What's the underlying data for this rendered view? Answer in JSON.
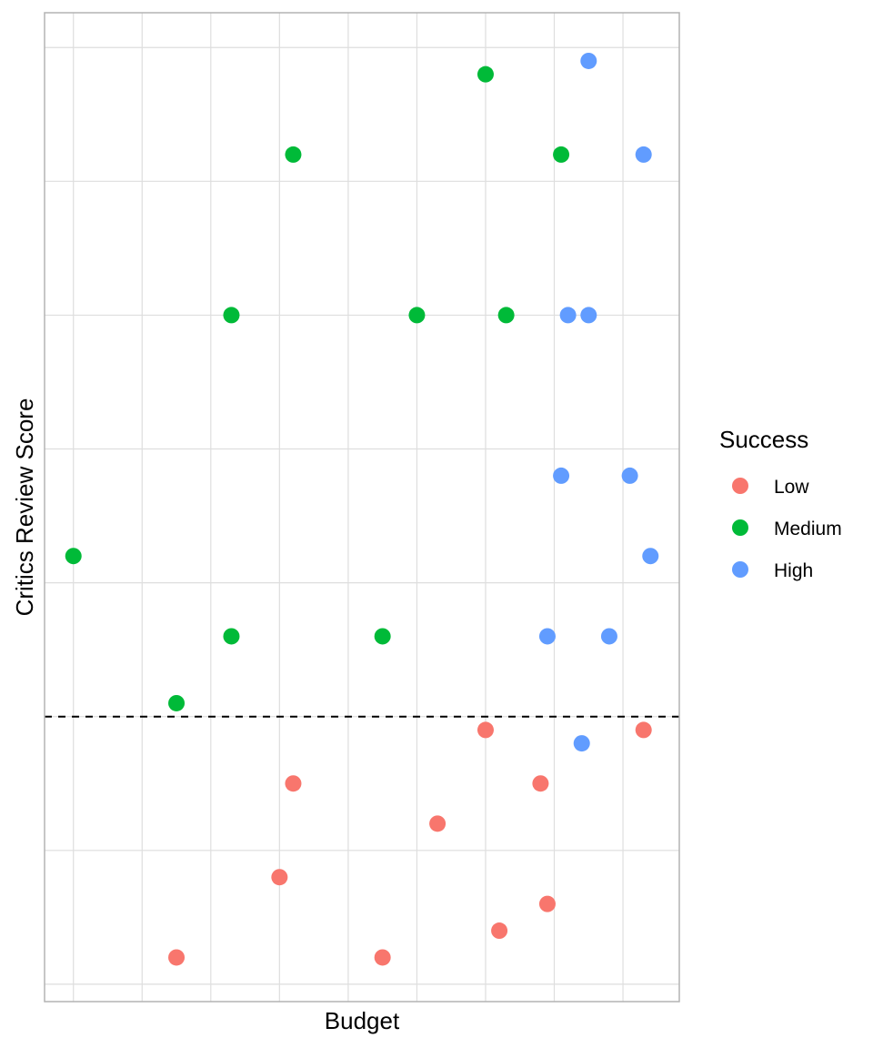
{
  "chart_data": {
    "type": "scatter",
    "title": "",
    "xlabel": "Budget",
    "ylabel": "Critics Review Score",
    "xlim": [
      -0.42,
      8.82
    ],
    "ylim": [
      -0.13,
      7.26
    ],
    "x_gridlines": [
      0,
      1,
      2,
      3,
      4,
      5,
      6,
      7,
      8
    ],
    "y_gridlines": [
      0,
      1,
      2,
      3,
      4,
      5,
      6,
      7
    ],
    "tick_labels_shown": false,
    "grid": true,
    "reference_line": {
      "orientation": "horizontal",
      "y": 2,
      "style": "dashed",
      "color": "#000000"
    },
    "legend": {
      "title": "Success",
      "position": "right",
      "entries": [
        "Low",
        "Medium",
        "High"
      ]
    },
    "series": [
      {
        "name": "Low",
        "color": "#F8766D",
        "points": [
          {
            "x": 6.0,
            "y": 1.9
          },
          {
            "x": 8.3,
            "y": 1.9
          },
          {
            "x": 3.2,
            "y": 1.5
          },
          {
            "x": 6.8,
            "y": 1.5
          },
          {
            "x": 5.3,
            "y": 1.2
          },
          {
            "x": 3.0,
            "y": 0.8
          },
          {
            "x": 6.9,
            "y": 0.6
          },
          {
            "x": 6.2,
            "y": 0.4
          },
          {
            "x": 1.5,
            "y": 0.2
          },
          {
            "x": 4.5,
            "y": 0.2
          }
        ]
      },
      {
        "name": "Medium",
        "color": "#00BA38",
        "points": [
          {
            "x": 6.0,
            "y": 6.8
          },
          {
            "x": 7.1,
            "y": 6.2
          },
          {
            "x": 3.2,
            "y": 6.2
          },
          {
            "x": 2.3,
            "y": 5.0
          },
          {
            "x": 5.0,
            "y": 5.0
          },
          {
            "x": 6.3,
            "y": 5.0
          },
          {
            "x": 0.0,
            "y": 3.2
          },
          {
            "x": 2.3,
            "y": 2.6
          },
          {
            "x": 4.5,
            "y": 2.6
          },
          {
            "x": 1.5,
            "y": 2.1
          }
        ]
      },
      {
        "name": "High",
        "color": "#619CFF",
        "points": [
          {
            "x": 7.5,
            "y": 6.9
          },
          {
            "x": 8.3,
            "y": 6.2
          },
          {
            "x": 7.2,
            "y": 5.0
          },
          {
            "x": 7.5,
            "y": 5.0
          },
          {
            "x": 7.1,
            "y": 3.8
          },
          {
            "x": 8.1,
            "y": 3.8
          },
          {
            "x": 8.4,
            "y": 3.2
          },
          {
            "x": 6.9,
            "y": 2.6
          },
          {
            "x": 7.8,
            "y": 2.6
          },
          {
            "x": 7.4,
            "y": 1.8
          }
        ]
      }
    ]
  }
}
